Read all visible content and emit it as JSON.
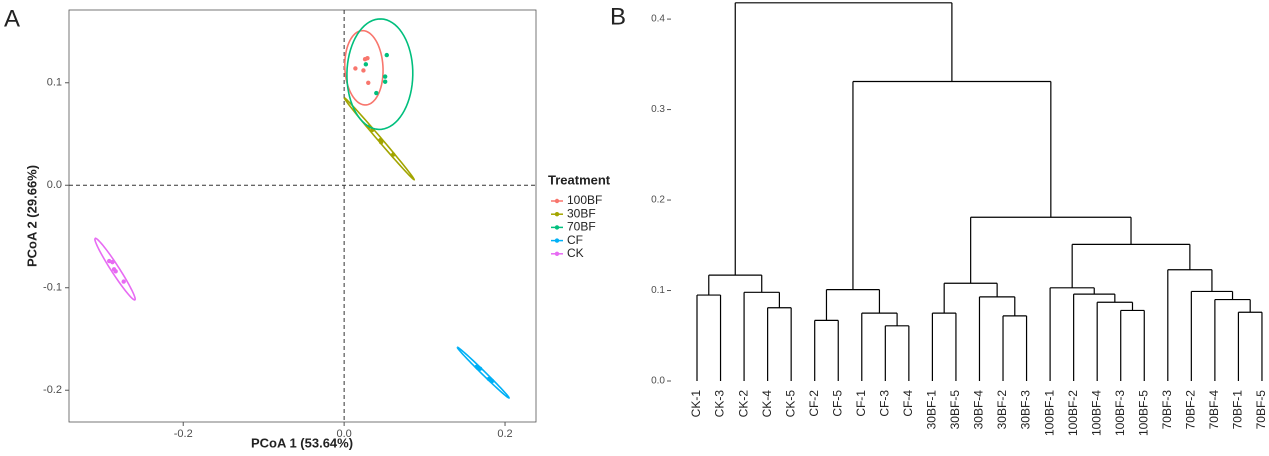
{
  "chart_data": [
    {
      "type": "scatter",
      "panel": "A",
      "xlabel": "PCoA 1 (53.64%)",
      "ylabel": "PCoA 2 (29.66%)",
      "xlim": [
        -0.342,
        0.2385
      ],
      "ylim": [
        -0.231,
        0.171
      ],
      "xticks": [
        -0.2,
        {
          "value": 0,
          "label": "0.0"
        },
        0.2
      ],
      "yticks": [
        -0.2,
        -0.1,
        {
          "value": 0,
          "label": "0.0"
        },
        0.1
      ],
      "legend_title": "Treatment",
      "ellipses": true,
      "series": [
        {
          "name": "100BF",
          "color": "#F8766D",
          "x": [
            0.014,
            0.026,
            0.029,
            0.024,
            0.03
          ],
          "y": [
            0.114,
            0.123,
            0.124,
            0.112,
            0.1
          ]
        },
        {
          "name": "30BF",
          "color": "#A3A500",
          "x": [
            0.031,
            0.035,
            0.045,
            0.046,
            0.061
          ],
          "y": [
            0.057,
            0.054,
            0.044,
            0.042,
            0.03
          ]
        },
        {
          "name": "70BF",
          "color": "#00BF7D",
          "x": [
            0.027,
            0.053,
            0.051,
            0.051,
            0.04
          ],
          "y": [
            0.118,
            0.127,
            0.106,
            0.101,
            0.09
          ]
        },
        {
          "name": "CF",
          "color": "#00B0F6",
          "x": [
            0.165,
            0.169,
            0.18,
            0.184,
            0.166
          ],
          "y": [
            -0.177,
            -0.179,
            -0.189,
            -0.191,
            -0.178
          ]
        },
        {
          "name": "CK",
          "color": "#E76BF3",
          "x": [
            -0.292,
            -0.288,
            -0.286,
            -0.284,
            -0.274
          ],
          "y": [
            -0.074,
            -0.075,
            -0.082,
            -0.084,
            -0.094
          ]
        }
      ]
    },
    {
      "type": "dendrogram",
      "panel": "B",
      "ylim": [
        0,
        0.42
      ],
      "yticks": [
        {
          "value": 0,
          "label": "0.0"
        },
        0.1,
        0.2,
        0.3,
        0.4
      ],
      "tree": {
        "height": 0.418,
        "children": [
          {
            "height": 0.117,
            "children": [
              {
                "height": 0.095,
                "children": [
                  {
                    "label": "CK-1"
                  },
                  {
                    "label": "CK-3"
                  }
                ]
              },
              {
                "height": 0.098,
                "children": [
                  {
                    "label": "CK-2"
                  },
                  {
                    "height": 0.081,
                    "children": [
                      {
                        "label": "CK-4"
                      },
                      {
                        "label": "CK-5"
                      }
                    ]
                  }
                ]
              }
            ]
          },
          {
            "height": 0.331,
            "children": [
              {
                "height": 0.101,
                "children": [
                  {
                    "height": 0.067,
                    "children": [
                      {
                        "label": "CF-2"
                      },
                      {
                        "label": "CF-5"
                      }
                    ]
                  },
                  {
                    "height": 0.075,
                    "children": [
                      {
                        "label": "CF-1"
                      },
                      {
                        "height": 0.061,
                        "children": [
                          {
                            "label": "CF-3"
                          },
                          {
                            "label": "CF-4"
                          }
                        ]
                      }
                    ]
                  }
                ]
              },
              {
                "height": 0.181,
                "children": [
                  {
                    "height": 0.108,
                    "children": [
                      {
                        "height": 0.075,
                        "children": [
                          {
                            "label": "30BF-1"
                          },
                          {
                            "label": "30BF-5"
                          }
                        ]
                      },
                      {
                        "height": 0.093,
                        "children": [
                          {
                            "label": "30BF-4"
                          },
                          {
                            "height": 0.072,
                            "children": [
                              {
                                "label": "30BF-2"
                              },
                              {
                                "label": "30BF-3"
                              }
                            ]
                          }
                        ]
                      }
                    ]
                  },
                  {
                    "height": 0.151,
                    "children": [
                      {
                        "height": 0.103,
                        "children": [
                          {
                            "label": "100BF-1"
                          },
                          {
                            "height": 0.096,
                            "children": [
                              {
                                "label": "100BF-2"
                              },
                              {
                                "height": 0.087,
                                "children": [
                                  {
                                    "label": "100BF-4"
                                  },
                                  {
                                    "height": 0.078,
                                    "children": [
                                      {
                                        "label": "100BF-3"
                                      },
                                      {
                                        "label": "100BF-5"
                                      }
                                    ]
                                  }
                                ]
                              }
                            ]
                          }
                        ]
                      },
                      {
                        "height": 0.123,
                        "children": [
                          {
                            "label": "70BF-3"
                          },
                          {
                            "height": 0.099,
                            "children": [
                              {
                                "label": "70BF-2"
                              },
                              {
                                "height": 0.09,
                                "children": [
                                  {
                                    "label": "70BF-4"
                                  },
                                  {
                                    "height": 0.076,
                                    "children": [
                                      {
                                        "label": "70BF-1"
                                      },
                                      {
                                        "label": "70BF-5"
                                      }
                                    ]
                                  }
                                ]
                              }
                            ]
                          }
                        ]
                      }
                    ]
                  }
                ]
              }
            ]
          }
        ]
      }
    }
  ]
}
